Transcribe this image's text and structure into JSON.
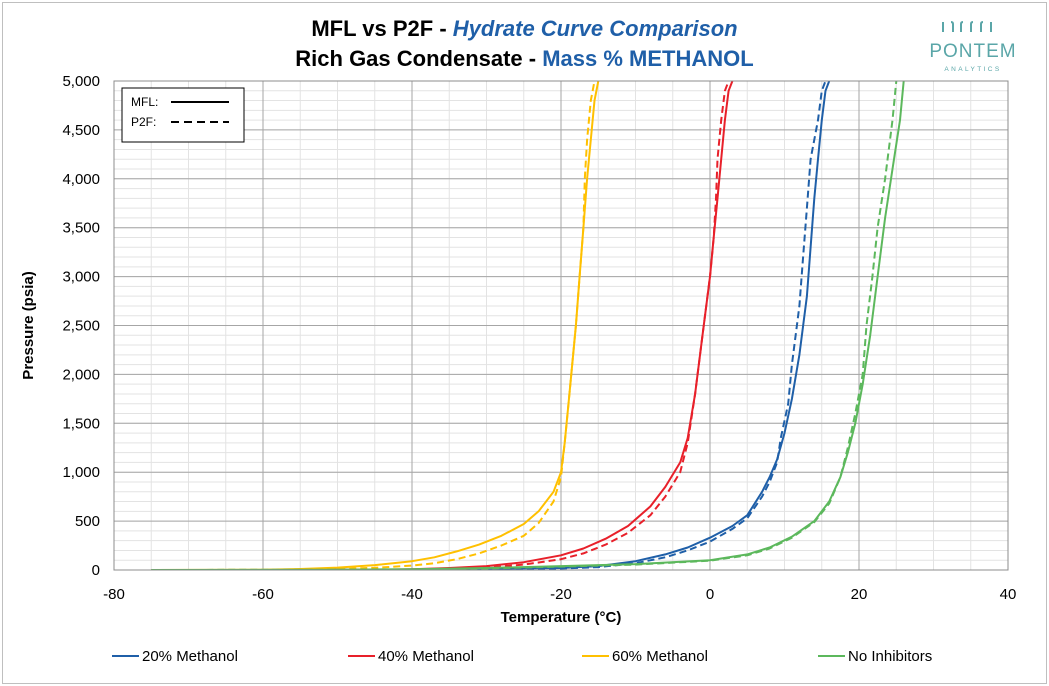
{
  "header": {
    "title_main": "MFL vs P2F - ",
    "title_accent": "Hydrate Curve Comparison",
    "subtitle_main": "Rich Gas Condensate - ",
    "subtitle_accent": "Mass % METHANOL",
    "logo_name": "PONTEM",
    "logo_sub": "ANALYTICS"
  },
  "colors": {
    "s20": "#1f5fa8",
    "s40": "#e8202a",
    "s60": "#ffc000",
    "sNone": "#5cb85c",
    "grid": "#c8c8c8",
    "axis": "#000000",
    "accent": "#1f5fa8",
    "logo": "#5aa6a8"
  },
  "chart_data": {
    "type": "line",
    "title": "MFL vs P2F - Hydrate Curve Comparison / Rich Gas Condensate - Mass % METHANOL",
    "xlabel": "Temperature (°C)",
    "ylabel": "Pressure (psia)",
    "xlim": [
      -80,
      40
    ],
    "ylim": [
      0,
      5000
    ],
    "x_ticks": [
      -80,
      -60,
      -40,
      -20,
      0,
      20,
      40
    ],
    "x_tick_labels": [
      "-80",
      "-60",
      "-40",
      "-20",
      "0",
      "20",
      "40"
    ],
    "y_ticks": [
      0,
      500,
      1000,
      1500,
      2000,
      2500,
      3000,
      3500,
      4000,
      4500,
      5000
    ],
    "y_tick_labels": [
      "0",
      "500",
      "1,000",
      "1,500",
      "2,000",
      "2,500",
      "3,000",
      "3,500",
      "4,000",
      "4,500",
      "5,000"
    ],
    "grid": true,
    "style_legend": {
      "position": "top-left",
      "items": [
        {
          "label": "MFL:",
          "style": "solid"
        },
        {
          "label": "P2F:",
          "style": "dashed"
        }
      ]
    },
    "legend": {
      "position": "bottom",
      "items": [
        "20% Methanol",
        "40% Methanol",
        "60% Methanol",
        "No Inhibitors"
      ]
    },
    "series": [
      {
        "name": "20% Methanol",
        "model": "MFL",
        "color_key": "s20",
        "dash": false,
        "points": [
          [
            -60,
            0
          ],
          [
            -40,
            5
          ],
          [
            -20,
            20
          ],
          [
            -15,
            40
          ],
          [
            -10,
            90
          ],
          [
            -6,
            160
          ],
          [
            -3,
            230
          ],
          [
            0,
            330
          ],
          [
            3,
            450
          ],
          [
            5,
            560
          ],
          [
            7,
            800
          ],
          [
            8,
            950
          ],
          [
            9,
            1130
          ],
          [
            10,
            1400
          ],
          [
            11,
            1750
          ],
          [
            12,
            2200
          ],
          [
            13,
            2800
          ],
          [
            13.5,
            3300
          ],
          [
            14,
            3800
          ],
          [
            14.5,
            4200
          ],
          [
            15,
            4600
          ],
          [
            15.5,
            4900
          ],
          [
            16,
            5000
          ]
        ]
      },
      {
        "name": "20% Methanol",
        "model": "P2F",
        "color_key": "s20",
        "dash": true,
        "points": [
          [
            -60,
            0
          ],
          [
            -40,
            5
          ],
          [
            -20,
            15
          ],
          [
            -15,
            30
          ],
          [
            -10,
            70
          ],
          [
            -6,
            130
          ],
          [
            -3,
            200
          ],
          [
            0,
            290
          ],
          [
            3,
            420
          ],
          [
            5,
            530
          ],
          [
            7,
            750
          ],
          [
            8,
            900
          ],
          [
            9,
            1100
          ],
          [
            9.5,
            1350
          ],
          [
            10.5,
            1700
          ],
          [
            11,
            2100
          ],
          [
            12,
            2700
          ],
          [
            12.5,
            3200
          ],
          [
            13,
            3700
          ],
          [
            13.5,
            4200
          ],
          [
            14.5,
            4600
          ],
          [
            15,
            4900
          ],
          [
            15.5,
            5000
          ]
        ]
      },
      {
        "name": "40% Methanol",
        "model": "MFL",
        "color_key": "s40",
        "dash": false,
        "points": [
          [
            -60,
            0
          ],
          [
            -45,
            3
          ],
          [
            -40,
            8
          ],
          [
            -35,
            20
          ],
          [
            -30,
            40
          ],
          [
            -25,
            80
          ],
          [
            -20,
            150
          ],
          [
            -17,
            220
          ],
          [
            -14,
            320
          ],
          [
            -11,
            450
          ],
          [
            -8,
            650
          ],
          [
            -6,
            850
          ],
          [
            -4,
            1100
          ],
          [
            -3,
            1350
          ],
          [
            -2,
            1800
          ],
          [
            -1,
            2400
          ],
          [
            0,
            3000
          ],
          [
            0.5,
            3400
          ],
          [
            1,
            3800
          ],
          [
            1.5,
            4200
          ],
          [
            2,
            4600
          ],
          [
            2.5,
            4900
          ],
          [
            3,
            5000
          ]
        ]
      },
      {
        "name": "40% Methanol",
        "model": "P2F",
        "color_key": "s40",
        "dash": true,
        "points": [
          [
            -60,
            0
          ],
          [
            -45,
            2
          ],
          [
            -40,
            5
          ],
          [
            -35,
            12
          ],
          [
            -30,
            25
          ],
          [
            -25,
            55
          ],
          [
            -20,
            110
          ],
          [
            -17,
            170
          ],
          [
            -14,
            260
          ],
          [
            -11,
            380
          ],
          [
            -8,
            560
          ],
          [
            -6,
            750
          ],
          [
            -4,
            1000
          ],
          [
            -3,
            1300
          ],
          [
            -2,
            1800
          ],
          [
            -1,
            2400
          ],
          [
            0,
            3000
          ],
          [
            0.5,
            3400
          ],
          [
            0.8,
            3800
          ],
          [
            1,
            4200
          ],
          [
            1.5,
            4600
          ],
          [
            2,
            4900
          ],
          [
            2.5,
            5000
          ]
        ]
      },
      {
        "name": "60% Methanol",
        "model": "MFL",
        "color_key": "s60",
        "dash": false,
        "points": [
          [
            -75,
            0
          ],
          [
            -60,
            3
          ],
          [
            -55,
            10
          ],
          [
            -50,
            25
          ],
          [
            -45,
            50
          ],
          [
            -40,
            90
          ],
          [
            -37,
            130
          ],
          [
            -34,
            190
          ],
          [
            -31,
            260
          ],
          [
            -28,
            350
          ],
          [
            -25,
            470
          ],
          [
            -23,
            600
          ],
          [
            -21,
            800
          ],
          [
            -20,
            1000
          ],
          [
            -19.5,
            1300
          ],
          [
            -19,
            1700
          ],
          [
            -18.5,
            2100
          ],
          [
            -18,
            2500
          ],
          [
            -17.5,
            3000
          ],
          [
            -17,
            3500
          ],
          [
            -16.5,
            4000
          ],
          [
            -16,
            4400
          ],
          [
            -15.5,
            4800
          ],
          [
            -15,
            5000
          ]
        ]
      },
      {
        "name": "60% Methanol",
        "model": "P2F",
        "color_key": "s60",
        "dash": true,
        "points": [
          [
            -75,
            0
          ],
          [
            -60,
            1
          ],
          [
            -55,
            4
          ],
          [
            -50,
            10
          ],
          [
            -45,
            22
          ],
          [
            -40,
            45
          ],
          [
            -37,
            70
          ],
          [
            -34,
            110
          ],
          [
            -31,
            170
          ],
          [
            -28,
            250
          ],
          [
            -25,
            350
          ],
          [
            -23,
            480
          ],
          [
            -21,
            700
          ],
          [
            -20,
            950
          ],
          [
            -19.5,
            1300
          ],
          [
            -19,
            1700
          ],
          [
            -18.5,
            2100
          ],
          [
            -18,
            2500
          ],
          [
            -17.5,
            3000
          ],
          [
            -17,
            3500
          ],
          [
            -16.8,
            4000
          ],
          [
            -16.5,
            4400
          ],
          [
            -16,
            4800
          ],
          [
            -15.5,
            5000
          ]
        ]
      },
      {
        "name": "No Inhibitors",
        "model": "MFL",
        "color_key": "sNone",
        "dash": false,
        "points": [
          [
            -75,
            0
          ],
          [
            -50,
            3
          ],
          [
            -40,
            8
          ],
          [
            -30,
            20
          ],
          [
            -20,
            40
          ],
          [
            -10,
            60
          ],
          [
            0,
            100
          ],
          [
            5,
            160
          ],
          [
            8,
            230
          ],
          [
            11,
            340
          ],
          [
            14,
            500
          ],
          [
            16,
            700
          ],
          [
            17.5,
            950
          ],
          [
            18.5,
            1200
          ],
          [
            19.5,
            1500
          ],
          [
            20.5,
            1900
          ],
          [
            21.5,
            2400
          ],
          [
            22.5,
            3000
          ],
          [
            23.5,
            3600
          ],
          [
            24.5,
            4100
          ],
          [
            25.5,
            4600
          ],
          [
            26,
            5000
          ]
        ]
      },
      {
        "name": "No Inhibitors",
        "model": "P2F",
        "color_key": "sNone",
        "dash": true,
        "points": [
          [
            -75,
            0
          ],
          [
            -50,
            2
          ],
          [
            -40,
            6
          ],
          [
            -30,
            15
          ],
          [
            -20,
            35
          ],
          [
            -10,
            55
          ],
          [
            0,
            95
          ],
          [
            5,
            150
          ],
          [
            8,
            220
          ],
          [
            11,
            330
          ],
          [
            14,
            490
          ],
          [
            16,
            680
          ],
          [
            17.5,
            950
          ],
          [
            18.5,
            1250
          ],
          [
            19.5,
            1600
          ],
          [
            20.5,
            2000
          ],
          [
            21,
            2500
          ],
          [
            21.8,
            3000
          ],
          [
            22.5,
            3500
          ],
          [
            23.5,
            4000
          ],
          [
            24.5,
            4600
          ],
          [
            25,
            5000
          ]
        ]
      }
    ]
  }
}
